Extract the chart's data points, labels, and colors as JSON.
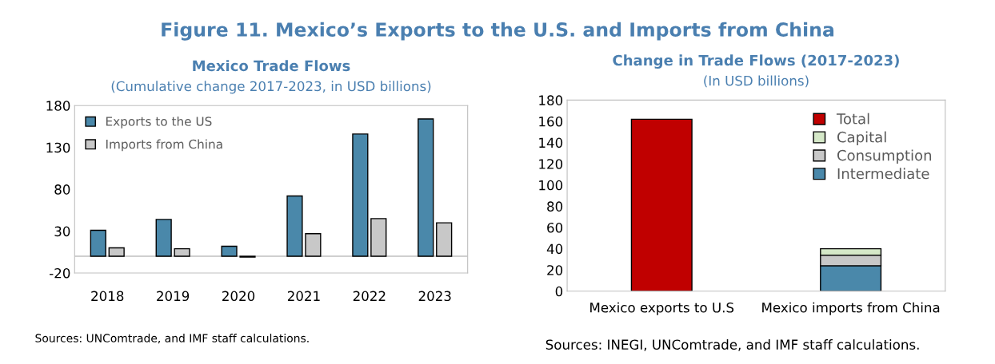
{
  "chart_data": [
    {
      "type": "bar",
      "title": "Mexico Trade Flows",
      "subtitle": "(Cumulative change 2017-2023, in USD billions)",
      "categories": [
        "2018",
        "2019",
        "2020",
        "2021",
        "2022",
        "2023"
      ],
      "series": [
        {
          "name": "Exports to the US",
          "color": "#4a88aa",
          "values": [
            31,
            44,
            12,
            72,
            146,
            164
          ]
        },
        {
          "name": "Imports from China",
          "color": "#c8c8c8",
          "values": [
            10,
            9,
            -1,
            27,
            45,
            40
          ]
        }
      ],
      "ylim": [
        -20,
        180
      ],
      "yticks": [
        -20,
        30,
        80,
        130,
        180
      ],
      "grid": false,
      "legend": "top left",
      "annotations": [
        "Figure 11. Mexico’s Exports to the U.S. and Imports from China",
        "Sources: UNComtrade, and IMF staff calculations."
      ]
    },
    {
      "type": "bar",
      "stacked": true,
      "title": "Change in Trade Flows (2017-2023)",
      "subtitle": "(In USD billions)",
      "categories": [
        "Mexico exports to U.S",
        "Mexico imports from China"
      ],
      "series": [
        {
          "name": "Intermediate",
          "color": "#4a88aa",
          "values": [
            null,
            24
          ]
        },
        {
          "name": "Consumption",
          "color": "#c8c8c8",
          "values": [
            null,
            10
          ]
        },
        {
          "name": "Capital",
          "color": "#d5e8c8",
          "values": [
            null,
            6
          ]
        },
        {
          "name": "Total",
          "color": "#c00000",
          "values": [
            162,
            null
          ]
        }
      ],
      "ylim": [
        0,
        180
      ],
      "yticks": [
        0,
        20,
        40,
        60,
        80,
        100,
        120,
        140,
        160,
        180
      ],
      "grid": false,
      "legend": "top right",
      "annotations": [
        "Sources: INEGI, UNComtrade, and IMF staff calculations."
      ]
    }
  ]
}
